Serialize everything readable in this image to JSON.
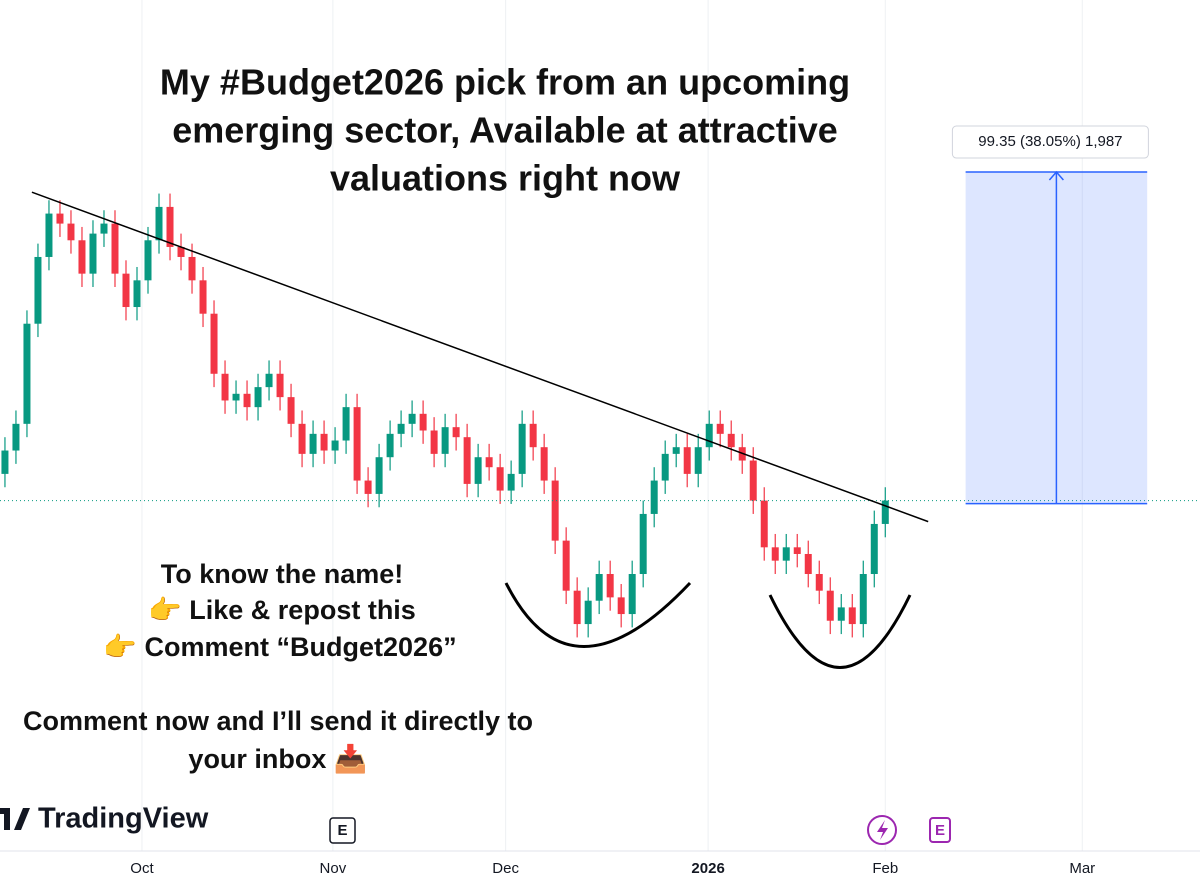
{
  "chart_data": {
    "type": "candlestick",
    "title": [
      "My #Budget2026 pick from an upcoming",
      "emerging sector, Available at attractive",
      "valuations right now"
    ],
    "callout": [
      "To know the name!",
      "👉 Like & repost this",
      "👉 Comment “Budget2026”"
    ],
    "footer_text": [
      "Comment now and I’ll send it directly to",
      "your inbox 📥"
    ],
    "brand": "TradingView",
    "badges": [
      "E",
      "E"
    ],
    "up_color": "#089981",
    "down_color": "#f23645",
    "open": [
      270,
      277,
      285,
      315,
      335,
      348,
      345,
      340,
      330,
      342,
      345,
      330,
      320,
      328,
      340,
      350,
      338,
      335,
      328,
      318,
      300,
      292,
      294,
      290,
      296,
      300,
      293,
      285,
      276,
      282,
      277,
      280,
      290,
      268,
      264,
      275,
      282,
      285,
      288,
      283,
      276,
      284,
      281,
      267,
      275,
      272,
      265,
      270,
      285,
      278,
      268,
      250,
      235,
      225,
      232,
      240,
      233,
      228,
      240,
      258,
      268,
      276,
      278,
      270,
      278,
      285,
      282,
      278,
      274,
      262,
      248,
      244,
      248,
      246,
      240,
      235,
      226,
      230,
      225,
      240,
      255
    ],
    "high": [
      281,
      289,
      319,
      339,
      352,
      352,
      349,
      344,
      346,
      349,
      349,
      334,
      332,
      344,
      354,
      354,
      342,
      339,
      332,
      322,
      304,
      298,
      298,
      300,
      304,
      304,
      297,
      289,
      286,
      286,
      284,
      294,
      294,
      272,
      279,
      286,
      289,
      292,
      292,
      287,
      288,
      288,
      285,
      279,
      279,
      276,
      274,
      289,
      289,
      282,
      272,
      254,
      239,
      236,
      244,
      244,
      237,
      244,
      262,
      272,
      280,
      282,
      282,
      282,
      289,
      289,
      286,
      282,
      278,
      266,
      252,
      252,
      252,
      250,
      244,
      239,
      234,
      234,
      244,
      259,
      266
    ],
    "low": [
      266,
      273,
      281,
      311,
      331,
      341,
      336,
      326,
      326,
      338,
      326,
      316,
      316,
      324,
      336,
      334,
      331,
      324,
      314,
      296,
      288,
      288,
      286,
      286,
      292,
      289,
      281,
      272,
      272,
      273,
      273,
      276,
      264,
      260,
      260,
      271,
      278,
      281,
      279,
      272,
      272,
      277,
      263,
      263,
      268,
      261,
      261,
      266,
      274,
      264,
      246,
      231,
      221,
      221,
      228,
      229,
      224,
      224,
      236,
      254,
      264,
      272,
      266,
      266,
      274,
      278,
      274,
      270,
      258,
      244,
      240,
      240,
      242,
      236,
      231,
      222,
      222,
      221,
      221,
      236,
      251
    ],
    "close": [
      277,
      285,
      315,
      335,
      348,
      345,
      340,
      330,
      342,
      345,
      330,
      320,
      328,
      340,
      350,
      338,
      335,
      328,
      318,
      300,
      292,
      294,
      290,
      296,
      300,
      293,
      285,
      276,
      282,
      277,
      280,
      290,
      268,
      264,
      275,
      282,
      285,
      288,
      283,
      276,
      284,
      281,
      267,
      275,
      272,
      265,
      270,
      285,
      278,
      268,
      250,
      235,
      225,
      232,
      240,
      233,
      228,
      240,
      258,
      268,
      276,
      278,
      270,
      278,
      285,
      282,
      278,
      274,
      262,
      248,
      244,
      248,
      246,
      240,
      235,
      226,
      230,
      225,
      240,
      255,
      262
    ],
    "xlim": [
      -0.45,
      108.6
    ],
    "ylim": [
      157,
      412
    ],
    "xticks": [
      {
        "value": 12.45,
        "label": "Oct"
      },
      {
        "value": 29.8,
        "label": "Nov"
      },
      {
        "value": 45.5,
        "label": "Dec"
      },
      {
        "value": 63.9,
        "label": "2026",
        "bold": true
      },
      {
        "value": 80,
        "label": "Feb"
      },
      {
        "value": 97.9,
        "label": "Mar"
      }
    ],
    "grid": true,
    "trendline": {
      "x": [
        2.45,
        83.9
      ],
      "y": [
        354.4,
        255.7
      ]
    },
    "measure": {
      "x_start": 87.3,
      "x_end": 103.8,
      "from": 261.1,
      "to": 360.45,
      "label": "99.35 (38.05%) 1,987"
    }
  }
}
